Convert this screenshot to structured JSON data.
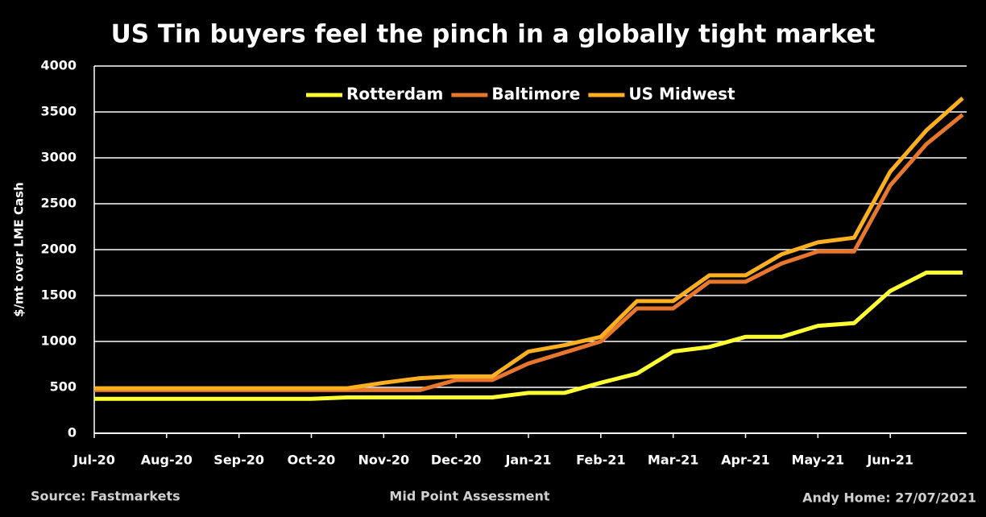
{
  "chart_data": {
    "type": "line",
    "title": "US Tin buyers feel the pinch in a globally tight market",
    "y_label": "$/mt over LME Cash",
    "categories": [
      "Jul-20",
      null,
      "Aug-20",
      null,
      "Sep-20",
      null,
      "Oct-20",
      null,
      "Nov-20",
      null,
      "Dec-20",
      null,
      "Jan-21",
      null,
      "Feb-21",
      null,
      "Mar-21",
      null,
      "Apr-21",
      null,
      "May-21",
      null,
      "Jun-21",
      null,
      null
    ],
    "series": [
      {
        "name": "Rotterdam",
        "color": "#ffff33",
        "values": [
          375,
          375,
          375,
          375,
          375,
          375,
          375,
          390,
          390,
          390,
          390,
          390,
          440,
          440,
          550,
          650,
          890,
          940,
          1050,
          1050,
          1170,
          1200,
          1550,
          1750,
          1750
        ]
      },
      {
        "name": "Baltimore",
        "color": "#e8772e",
        "values": [
          470,
          470,
          470,
          470,
          470,
          470,
          470,
          470,
          470,
          470,
          580,
          580,
          760,
          880,
          1000,
          1360,
          1360,
          1650,
          1650,
          1850,
          1980,
          1980,
          2700,
          3150,
          3470
        ]
      },
      {
        "name": "US Midwest",
        "color": "#ffb020",
        "values": [
          490,
          490,
          490,
          490,
          490,
          490,
          490,
          490,
          550,
          600,
          620,
          620,
          890,
          960,
          1050,
          1440,
          1440,
          1720,
          1720,
          1950,
          2080,
          2130,
          2850,
          3300,
          3650
        ]
      }
    ],
    "ylim": [
      0,
      4000
    ],
    "yticks": [
      0,
      500,
      1000,
      1500,
      2000,
      2500,
      3000,
      3500,
      4000
    ],
    "grid": true,
    "legend": "top",
    "source": "Source: Fastmarkets",
    "note": "Mid Point Assessment",
    "credit": "Andy Home: 27/07/2021"
  }
}
